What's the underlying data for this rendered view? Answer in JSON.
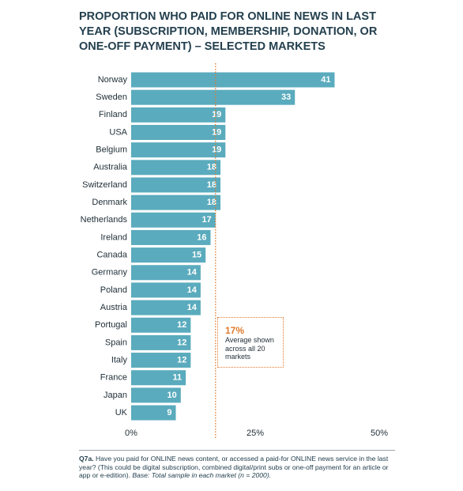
{
  "chart_data": {
    "type": "barh",
    "title": "PROPORTION WHO PAID FOR ONLINE NEWS IN LAST YEAR (SUBSCRIPTION, MEMBERSHIP, DONATION, OR ONE-OFF PAYMENT) – SELECTED MARKETS",
    "categories": [
      "Norway",
      "Sweden",
      "Finland",
      "USA",
      "Belgium",
      "Australia",
      "Switzerland",
      "Denmark",
      "Netherlands",
      "Ireland",
      "Canada",
      "Germany",
      "Poland",
      "Austria",
      "Portugal",
      "Spain",
      "Italy",
      "France",
      "Japan",
      "UK"
    ],
    "values": [
      41,
      33,
      19,
      19,
      19,
      18,
      18,
      18,
      17,
      16,
      15,
      14,
      14,
      14,
      12,
      12,
      12,
      11,
      10,
      9
    ],
    "color": "#5aabbd",
    "xlim": [
      0,
      50
    ],
    "xticks": [
      {
        "value": 0,
        "label": "0%"
      },
      {
        "value": 25,
        "label": "25%"
      },
      {
        "value": 50,
        "label": "50%"
      }
    ],
    "average": {
      "value": 17,
      "label": "17%",
      "text": "Average shown across all 20 markets",
      "color": "#e07a2c"
    },
    "footnote": {
      "label": "Q7a.",
      "text": "Have you paid for ONLINE news content, or accessed a paid-for ONLINE news service in the last year? (This could be digital subscription, combined digital/print subs or one-off payment for an article or app or e-edition).",
      "base": "Base: Total sample in each market (n = 2000)."
    }
  }
}
